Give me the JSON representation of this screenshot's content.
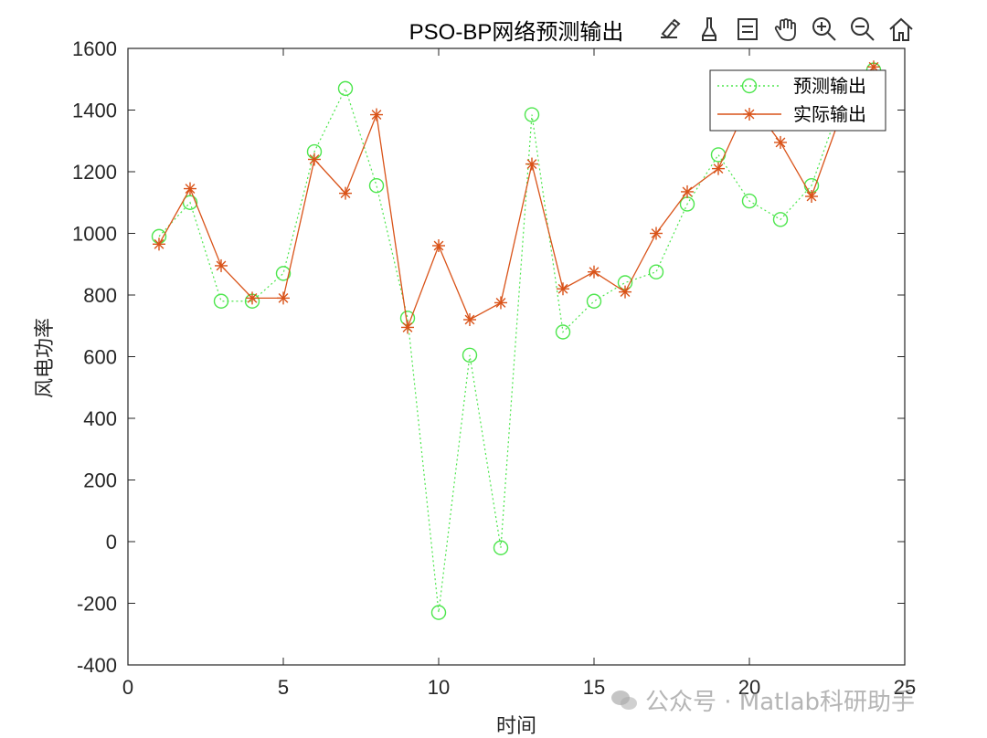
{
  "figure": {
    "toolbar": [
      {
        "name": "brush-edit-icon"
      },
      {
        "name": "brush-icon"
      },
      {
        "name": "data-tips-icon"
      },
      {
        "name": "pan-hand-icon"
      },
      {
        "name": "zoom-in-icon"
      },
      {
        "name": "zoom-out-icon"
      },
      {
        "name": "home-restore-icon"
      }
    ],
    "watermark": "公众号 · Matlab科研助手"
  },
  "colors": {
    "predicted": "#4de64d",
    "actual": "#d95319",
    "axis": "#262626"
  },
  "chart_data": {
    "type": "line",
    "title": "PSO-BP网络预测输出",
    "xlabel": "时间",
    "ylabel": "风电功率",
    "xlim": [
      0,
      25
    ],
    "ylim": [
      -400,
      1600
    ],
    "xticks": [
      0,
      5,
      10,
      15,
      20,
      25
    ],
    "yticks": [
      -400,
      -200,
      0,
      200,
      400,
      600,
      800,
      1000,
      1200,
      1400,
      1600
    ],
    "grid": false,
    "legend_position": "top-right",
    "x": [
      1,
      2,
      3,
      4,
      5,
      6,
      7,
      8,
      9,
      10,
      11,
      12,
      13,
      14,
      15,
      16,
      17,
      18,
      19,
      20,
      21,
      22,
      23,
      24
    ],
    "series": [
      {
        "name": "预测输出",
        "style": "dotted-circle",
        "values": [
          990,
          1100,
          780,
          780,
          870,
          1265,
          1470,
          1155,
          725,
          -230,
          605,
          -20,
          1385,
          680,
          780,
          840,
          875,
          1095,
          1255,
          1105,
          1045,
          1155,
          1440,
          1530
        ]
      },
      {
        "name": "实际输出",
        "style": "solid-star",
        "values": [
          965,
          1145,
          895,
          790,
          790,
          1240,
          1130,
          1385,
          695,
          960,
          720,
          775,
          1225,
          820,
          875,
          810,
          1000,
          1135,
          1210,
          1430,
          1295,
          1120,
          1400,
          1540
        ]
      }
    ]
  }
}
